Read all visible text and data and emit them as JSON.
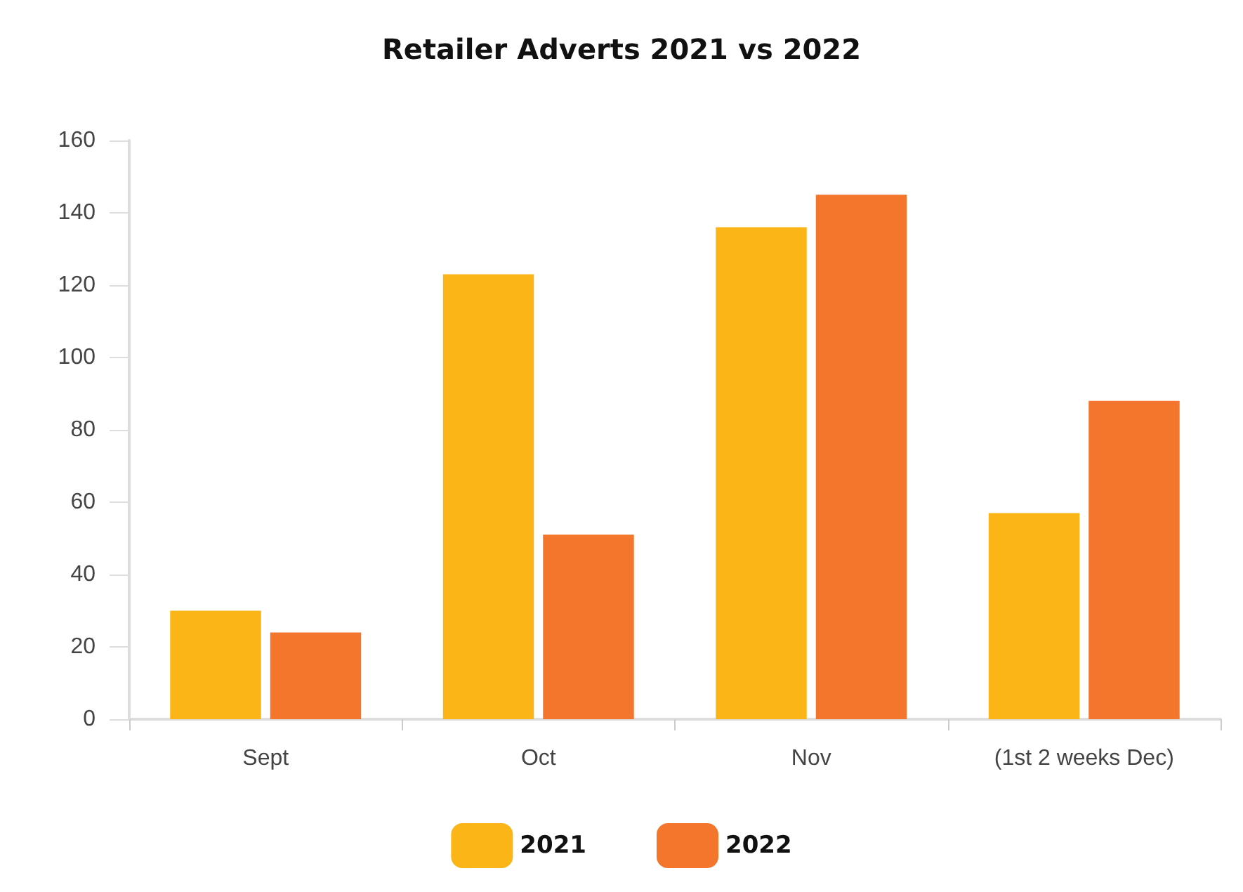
{
  "chart_data": {
    "type": "bar",
    "title": "Retailer Adverts 2021 vs 2022",
    "categories": [
      "Sept",
      "Oct",
      "Nov",
      "(1st 2 weeks Dec)"
    ],
    "series": [
      {
        "name": "2021",
        "color": "#fbb516",
        "values": [
          30,
          123,
          136,
          57
        ]
      },
      {
        "name": "2022",
        "color": "#f4762d",
        "values": [
          24,
          51,
          145,
          88
        ]
      }
    ],
    "ylim": [
      0,
      160
    ],
    "yticks": [
      0,
      20,
      40,
      60,
      80,
      100,
      120,
      140,
      160
    ],
    "grid": false,
    "legend": "bottom"
  }
}
